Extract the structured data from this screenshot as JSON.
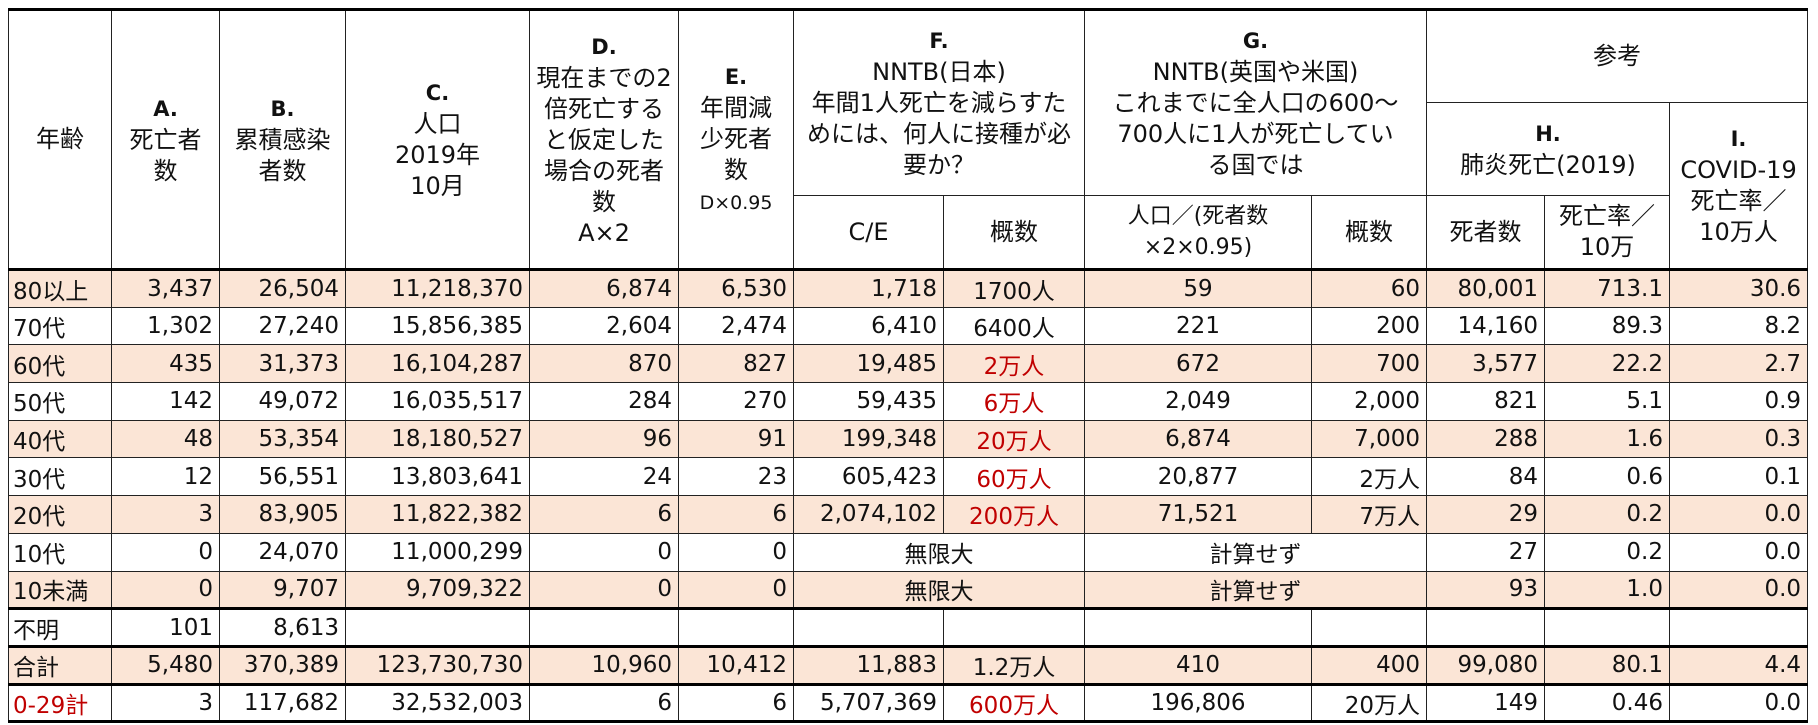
{
  "headers": {
    "age": "年齢",
    "A": {
      "letter": "A.",
      "label": "死亡者数"
    },
    "B": {
      "letter": "B.",
      "label": "累積感染者数"
    },
    "C": {
      "letter": "C.",
      "label1": "人口",
      "label2": "2019年",
      "label3": "10月"
    },
    "D": {
      "letter": "D.",
      "label": "現在までの2倍死亡すると仮定した場合の死者数",
      "formula": "A×2"
    },
    "E": {
      "letter": "E.",
      "label": "年間減少死者数",
      "formula": "D×0.95"
    },
    "F": {
      "letter": "F.",
      "line1": "NNTB(日本)",
      "line2": "年間1人死亡を減らすためには、何人に接種が必要か？",
      "sub1": "C/E",
      "sub2": "概数"
    },
    "G": {
      "letter": "G.",
      "line1": "NNTB(英国や米国)",
      "line2": "これまでに全人口の600〜700人に1人が死亡している国では",
      "sub1": "人口／(死者数×2×0.95)",
      "sub2": "概数"
    },
    "ref": {
      "label": "参考"
    },
    "H": {
      "letter": "H.",
      "label": "肺炎死亡(2019)",
      "sub1": "死者数",
      "sub2": "死亡率／10万"
    },
    "I": {
      "letter": "I.",
      "label": "COVID-19死亡率／10万人"
    }
  },
  "rows": [
    {
      "age": "80以上",
      "a": "3,437",
      "b": "26,504",
      "c": "11,218,370",
      "d": "6,874",
      "e": "6,530",
      "f1": "1,718",
      "f2": "1700人",
      "g1": "59",
      "g2": "60",
      "h1": "80,001",
      "h2": "713.1",
      "i": "30.6",
      "shade": true
    },
    {
      "age": "70代",
      "a": "1,302",
      "b": "27,240",
      "c": "15,856,385",
      "d": "2,604",
      "e": "2,474",
      "f1": "6,410",
      "f2": "6400人",
      "g1": "221",
      "g2": "200",
      "h1": "14,160",
      "h2": "89.3",
      "i": "8.2",
      "shade": false
    },
    {
      "age": "60代",
      "a": "435",
      "b": "31,373",
      "c": "16,104,287",
      "d": "870",
      "e": "827",
      "f1": "19,485",
      "f2": "2万人",
      "g1": "672",
      "g2": "700",
      "h1": "3,577",
      "h2": "22.2",
      "i": "2.7",
      "shade": true,
      "bold_e": true,
      "red_f2": true
    },
    {
      "age": "50代",
      "a": "142",
      "b": "49,072",
      "c": "16,035,517",
      "d": "284",
      "e": "270",
      "f1": "59,435",
      "f2": "6万人",
      "g1": "2,049",
      "g2": "2,000",
      "h1": "821",
      "h2": "5.1",
      "i": "0.9",
      "shade": false,
      "bold_e": true,
      "red_f2": true
    },
    {
      "age": "40代",
      "a": "48",
      "b": "53,354",
      "c": "18,180,527",
      "d": "96",
      "e": "91",
      "f1": "199,348",
      "f2": "20万人",
      "g1": "6,874",
      "g2": "7,000",
      "h1": "288",
      "h2": "1.6",
      "i": "0.3",
      "shade": true,
      "bold_e": true,
      "red_f2": true
    },
    {
      "age": "30代",
      "a": "12",
      "b": "56,551",
      "c": "13,803,641",
      "d": "24",
      "e": "23",
      "f1": "605,423",
      "f2": "60万人",
      "g1": "20,877",
      "g2": "2万人",
      "h1": "84",
      "h2": "0.6",
      "i": "0.1",
      "shade": false,
      "bold_e": true,
      "red_f2": true
    },
    {
      "age": "20代",
      "a": "3",
      "b": "83,905",
      "c": "11,822,382",
      "d": "6",
      "e": "6",
      "f1": "2,074,102",
      "f2": "200万人",
      "g1": "71,521",
      "g2": "7万人",
      "h1": "29",
      "h2": "0.2",
      "i": "0.0",
      "shade": true,
      "bold_e": true,
      "red_f2": true
    }
  ],
  "row_10s": {
    "age": "10代",
    "a": "0",
    "b": "24,070",
    "c": "11,000,299",
    "d": "0",
    "e": "0",
    "f": "無限大",
    "g": "計算せず",
    "h1": "27",
    "h2": "0.2",
    "i": "0.0"
  },
  "row_under10": {
    "age": "10未満",
    "a": "0",
    "b": "9,707",
    "c": "9,709,322",
    "d": "0",
    "e": "0",
    "f": "無限大",
    "g": "計算せず",
    "h1": "93",
    "h2": "1.0",
    "i": "0.0"
  },
  "row_unknown": {
    "age": "不明",
    "a": "101",
    "b": "8,613"
  },
  "row_total": {
    "age": "合計",
    "a": "5,480",
    "b": "370,389",
    "c": "123,730,730",
    "d": "10,960",
    "e": "10,412",
    "f1": "11,883",
    "f2": "1.2万人",
    "g1": "410",
    "g2": "400",
    "h1": "99,080",
    "h2": "80.1",
    "i": "4.4"
  },
  "row_0_29": {
    "age": "0-29計",
    "a": "3",
    "b": "117,682",
    "c": "32,532,003",
    "d": "6",
    "e": "6",
    "f1": "5,707,369",
    "f2": "600万人",
    "g1": "196,806",
    "g2": "20万人",
    "h1": "149",
    "h2": "0.46",
    "i": "0.0"
  }
}
